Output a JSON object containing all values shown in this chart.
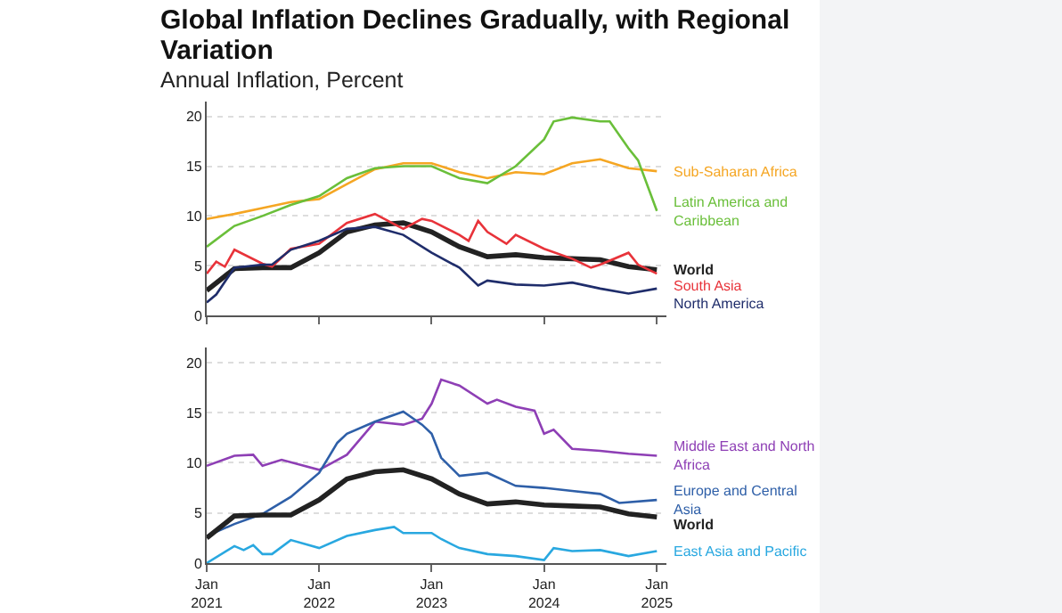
{
  "chart_data": [
    {
      "type": "line",
      "title": "Global Inflation Declines Gradually, with Regional Variation",
      "subtitle": "Annual Inflation, Percent",
      "xlim": [
        "2021-01",
        "2025-02"
      ],
      "xticks": [
        {
          "value": "2021-01",
          "label": null
        },
        {
          "value": "2022-01",
          "label": null
        },
        {
          "value": "2023-01",
          "label": null
        },
        {
          "value": "2024-01",
          "label": null
        },
        {
          "value": "2025-01",
          "label": null
        }
      ],
      "ylim": [
        0,
        21.5
      ],
      "yticks": [
        0,
        5,
        10,
        15,
        20
      ],
      "grid": "y",
      "tick_labels": "y",
      "series": [
        {
          "name": "Sub-Saharan Africa",
          "color": "#f5a623",
          "x": [
            "2021-01",
            "2021-04",
            "2021-07",
            "2021-10",
            "2022-01",
            "2022-04",
            "2022-07",
            "2022-10",
            "2023-01",
            "2023-04",
            "2023-07",
            "2023-10",
            "2024-01",
            "2024-04",
            "2024-07",
            "2024-10",
            "2025-01"
          ],
          "values": [
            9.7,
            10.2,
            10.8,
            11.4,
            11.7,
            13.2,
            14.7,
            15.3,
            15.3,
            14.4,
            13.8,
            14.4,
            14.2,
            15.3,
            15.7,
            14.8,
            14.5
          ]
        },
        {
          "name": "Latin America and Caribbean",
          "color": "#6abf3a",
          "x": [
            "2021-01",
            "2021-04",
            "2021-07",
            "2021-10",
            "2022-01",
            "2022-04",
            "2022-07",
            "2022-10",
            "2023-01",
            "2023-04",
            "2023-07",
            "2023-10",
            "2024-01",
            "2024-02",
            "2024-04",
            "2024-07",
            "2024-08",
            "2024-10",
            "2024-11",
            "2025-01"
          ],
          "values": [
            6.9,
            9.0,
            10.0,
            11.1,
            12.0,
            13.8,
            14.8,
            15.0,
            15.0,
            13.8,
            13.3,
            15.0,
            17.7,
            19.5,
            19.9,
            19.5,
            19.5,
            16.8,
            15.6,
            10.5
          ]
        },
        {
          "name": "World",
          "color": "#222222",
          "x": [
            "2021-01",
            "2021-04",
            "2021-07",
            "2021-10",
            "2022-01",
            "2022-04",
            "2022-07",
            "2022-10",
            "2023-01",
            "2023-04",
            "2023-07",
            "2023-10",
            "2024-01",
            "2024-04",
            "2024-07",
            "2024-10",
            "2025-01"
          ],
          "values": [
            2.5,
            4.7,
            4.8,
            4.8,
            6.3,
            8.4,
            9.1,
            9.3,
            8.4,
            6.9,
            5.9,
            6.1,
            5.8,
            5.7,
            5.6,
            4.9,
            4.6
          ]
        },
        {
          "name": "South Asia",
          "color": "#e8333a",
          "x": [
            "2021-01",
            "2021-02",
            "2021-03",
            "2021-04",
            "2021-07",
            "2021-08",
            "2021-10",
            "2022-01",
            "2022-04",
            "2022-07",
            "2022-10",
            "2022-12",
            "2023-01",
            "2023-04",
            "2023-05",
            "2023-06",
            "2023-07",
            "2023-09",
            "2023-10",
            "2024-01",
            "2024-04",
            "2024-06",
            "2024-07",
            "2024-10",
            "2024-11",
            "2025-01"
          ],
          "values": [
            4.2,
            5.4,
            4.9,
            6.6,
            5.2,
            4.9,
            6.7,
            7.2,
            9.3,
            10.2,
            8.7,
            9.7,
            9.5,
            8.1,
            7.5,
            9.5,
            8.4,
            7.2,
            8.1,
            6.7,
            5.7,
            4.8,
            5.1,
            6.3,
            5.1,
            4.2
          ]
        },
        {
          "name": "North America",
          "color": "#1f2d6b",
          "x": [
            "2021-01",
            "2021-02",
            "2021-04",
            "2021-07",
            "2021-08",
            "2021-10",
            "2022-01",
            "2022-04",
            "2022-07",
            "2022-10",
            "2023-01",
            "2023-04",
            "2023-06",
            "2023-07",
            "2023-10",
            "2024-01",
            "2024-04",
            "2024-07",
            "2024-10",
            "2025-01"
          ],
          "values": [
            1.3,
            2.1,
            4.8,
            5.1,
            5.1,
            6.6,
            7.5,
            8.7,
            8.9,
            8.1,
            6.3,
            4.8,
            3.0,
            3.5,
            3.1,
            3.0,
            3.3,
            2.7,
            2.2,
            2.7
          ]
        }
      ]
    },
    {
      "type": "line",
      "xlim": [
        "2021-01",
        "2025-02"
      ],
      "xticks": [
        {
          "value": "2021-01",
          "label": "Jan\n2021"
        },
        {
          "value": "2022-01",
          "label": "Jan\n2022"
        },
        {
          "value": "2023-01",
          "label": "Jan\n2023"
        },
        {
          "value": "2024-01",
          "label": "Jan\n2024"
        },
        {
          "value": "2025-01",
          "label": "Jan\n2025"
        }
      ],
      "ylim": [
        0,
        21.5
      ],
      "yticks": [
        0,
        5,
        10,
        15,
        20
      ],
      "grid": "y",
      "series": [
        {
          "name": "Middle East and North Africa",
          "color": "#8e3fb5",
          "x": [
            "2021-01",
            "2021-04",
            "2021-06",
            "2021-07",
            "2021-09",
            "2022-01",
            "2022-04",
            "2022-07",
            "2022-10",
            "2022-12",
            "2023-01",
            "2023-02",
            "2023-04",
            "2023-07",
            "2023-08",
            "2023-10",
            "2023-12",
            "2024-01",
            "2024-02",
            "2024-04",
            "2024-07",
            "2024-10",
            "2025-01"
          ],
          "values": [
            9.7,
            10.7,
            10.8,
            9.7,
            10.3,
            9.3,
            10.8,
            14.1,
            13.8,
            14.4,
            15.9,
            18.3,
            17.7,
            15.9,
            16.3,
            15.6,
            15.2,
            12.9,
            13.3,
            11.4,
            11.2,
            10.9,
            10.7
          ]
        },
        {
          "name": "Europe and Central Asia",
          "color": "#2e5fa8",
          "x": [
            "2021-01",
            "2021-04",
            "2021-07",
            "2021-10",
            "2022-01",
            "2022-03",
            "2022-04",
            "2022-07",
            "2022-10",
            "2022-12",
            "2023-01",
            "2023-02",
            "2023-04",
            "2023-07",
            "2023-10",
            "2024-01",
            "2024-04",
            "2024-07",
            "2024-09",
            "2025-01"
          ],
          "values": [
            2.7,
            3.9,
            4.9,
            6.6,
            9.0,
            12.0,
            12.9,
            14.1,
            15.1,
            13.8,
            12.9,
            10.5,
            8.7,
            9.0,
            7.7,
            7.5,
            7.2,
            6.9,
            6.0,
            6.3
          ]
        },
        {
          "name": "World",
          "color": "#222222",
          "x": [
            "2021-01",
            "2021-04",
            "2021-07",
            "2021-10",
            "2022-01",
            "2022-04",
            "2022-07",
            "2022-10",
            "2023-01",
            "2023-04",
            "2023-07",
            "2023-10",
            "2024-01",
            "2024-04",
            "2024-07",
            "2024-10",
            "2025-01"
          ],
          "values": [
            2.5,
            4.7,
            4.8,
            4.8,
            6.3,
            8.4,
            9.1,
            9.3,
            8.4,
            6.9,
            5.9,
            6.1,
            5.8,
            5.7,
            5.6,
            4.9,
            4.6
          ]
        },
        {
          "name": "East Asia and Pacific",
          "color": "#29a8e0",
          "x": [
            "2021-01",
            "2021-04",
            "2021-05",
            "2021-06",
            "2021-07",
            "2021-08",
            "2021-10",
            "2022-01",
            "2022-04",
            "2022-07",
            "2022-09",
            "2022-10",
            "2023-01",
            "2023-02",
            "2023-04",
            "2023-07",
            "2023-10",
            "2024-01",
            "2024-02",
            "2024-04",
            "2024-07",
            "2024-10",
            "2025-01"
          ],
          "values": [
            0.0,
            1.7,
            1.3,
            1.8,
            0.9,
            0.9,
            2.3,
            1.5,
            2.7,
            3.3,
            3.6,
            3.0,
            3.0,
            2.4,
            1.5,
            0.9,
            0.7,
            0.3,
            1.5,
            1.2,
            1.3,
            0.7,
            1.2
          ]
        }
      ]
    }
  ]
}
